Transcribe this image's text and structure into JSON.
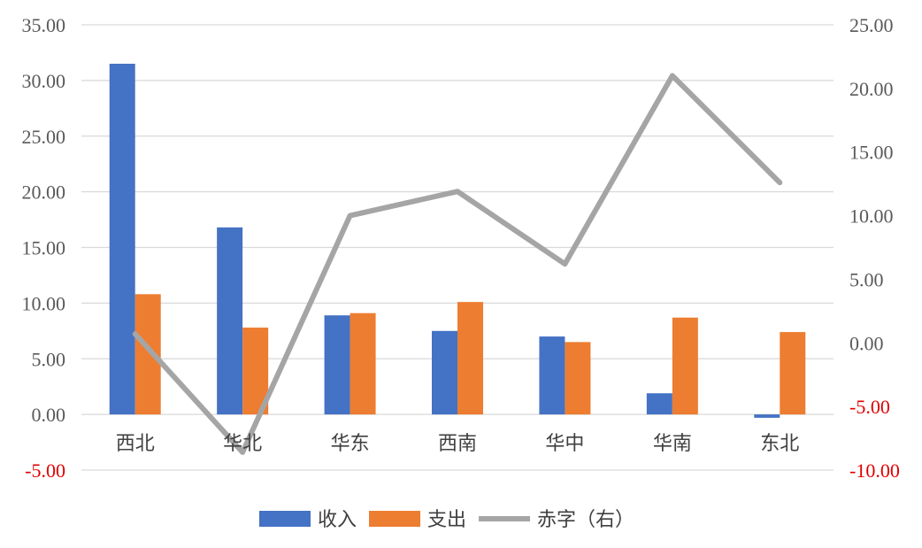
{
  "chart_data": {
    "type": "bar",
    "categories": [
      "西北",
      "华北",
      "华东",
      "西南",
      "华中",
      "华南",
      "东北"
    ],
    "series": [
      {
        "name": "收入",
        "type": "bar",
        "axis": "left",
        "color": "#4472C4",
        "values": [
          31.5,
          16.8,
          8.9,
          7.5,
          7.0,
          1.9,
          -0.3
        ]
      },
      {
        "name": "支出",
        "type": "bar",
        "axis": "left",
        "color": "#ED7D31",
        "values": [
          10.8,
          7.8,
          9.1,
          10.1,
          6.5,
          8.7,
          7.4
        ]
      },
      {
        "name": "赤字（右）",
        "type": "line",
        "axis": "right",
        "color": "#A5A5A5",
        "values": [
          0.7,
          -8.6,
          10.0,
          11.9,
          6.2,
          21.0,
          12.6
        ]
      }
    ],
    "yleft": {
      "min": -5,
      "max": 35,
      "step": 5,
      "ticks": [
        "-5.00",
        "0.00",
        "5.00",
        "10.00",
        "15.00",
        "20.00",
        "25.00",
        "30.00",
        "35.00"
      ]
    },
    "yright": {
      "min": -10,
      "max": 25,
      "step": 5,
      "ticks": [
        "-10.00",
        "-5.00",
        "0.00",
        "5.00",
        "10.00",
        "15.00",
        "20.00",
        "25.00"
      ]
    },
    "negative_tick_color": "#E00000",
    "grid": true,
    "legend": "bottom"
  }
}
